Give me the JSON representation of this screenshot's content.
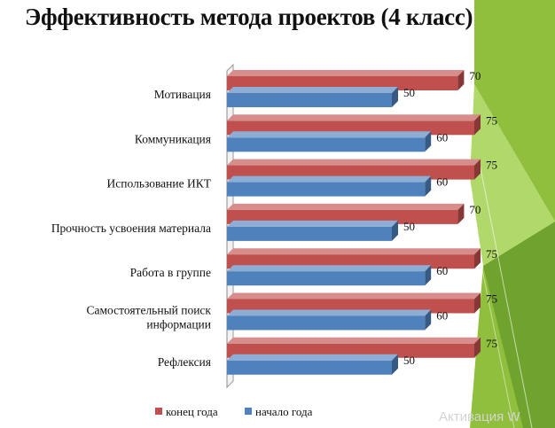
{
  "slide": {
    "title": "Эффективность метода проектов (4 класс)",
    "watermark": "Активация W"
  },
  "colors": {
    "series_end": "#c0504d",
    "series_start": "#4f81bd",
    "deco_green": "#8fbf3c",
    "deco_green_dark": "#6a9e2a"
  },
  "chart_data": {
    "type": "bar",
    "orientation": "horizontal",
    "style": "3d",
    "categories": [
      [
        "Мотивация"
      ],
      [
        "Коммуникация"
      ],
      [
        "Использование ИКТ"
      ],
      [
        "Прочность усвоения материала"
      ],
      [
        "Работа в группе"
      ],
      [
        "Самостоятельный поиск",
        "информации"
      ],
      [
        "Рефлексия"
      ]
    ],
    "series": [
      {
        "name": "конец года",
        "color": "#c0504d",
        "values": [
          70,
          75,
          75,
          70,
          75,
          75,
          75
        ]
      },
      {
        "name": "начало года",
        "color": "#4f81bd",
        "values": [
          50,
          60,
          60,
          50,
          60,
          60,
          50
        ]
      }
    ],
    "xlim": [
      0,
      80
    ],
    "grid": false,
    "legend": "bottom"
  }
}
